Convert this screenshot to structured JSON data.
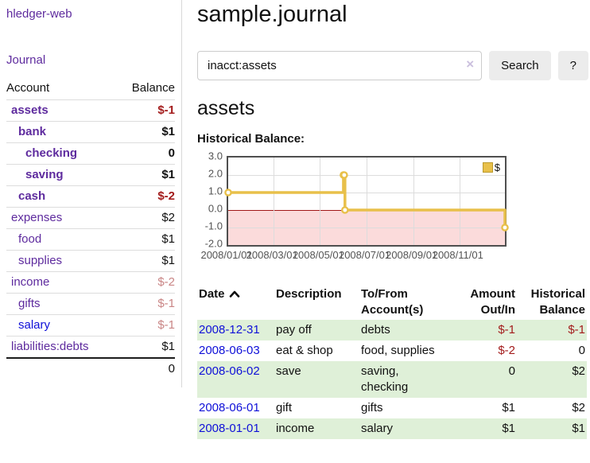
{
  "colors": {
    "link_purple": "#5e2b9e",
    "link_blue": "#0f10d8",
    "negative_dark": "#a31c1c",
    "negative_light": "#c98585",
    "row_green": "#dff0d8",
    "series_gold": "#e8c04a",
    "chart_border": "#4f4f4f",
    "grid_line": "#dcdcdc",
    "zero_line": "#a11616",
    "negative_region": "#fbdbdb",
    "axis_text": "#545454",
    "button_bg": "#ececec",
    "divider": "#d8d8d8"
  },
  "sidebar": {
    "brand": "hledger-web",
    "nav": {
      "journal": "Journal"
    },
    "accounts": {
      "col_account": "Account",
      "col_balance": "Balance",
      "rows": [
        {
          "name": "assets",
          "depth": 1,
          "bold": true,
          "color": "purple",
          "balance": "$-1",
          "balance_style": "neg-dark"
        },
        {
          "name": "bank",
          "depth": 2,
          "bold": true,
          "color": "purple",
          "balance": "$1",
          "balance_style": "pos"
        },
        {
          "name": "checking",
          "depth": 3,
          "bold": true,
          "color": "purple",
          "balance": "0",
          "balance_style": "pos"
        },
        {
          "name": "saving",
          "depth": 3,
          "bold": true,
          "color": "purple",
          "balance": "$1",
          "balance_style": "pos"
        },
        {
          "name": "cash",
          "depth": 2,
          "bold": true,
          "color": "purple",
          "balance": "$-2",
          "balance_style": "neg-dark"
        },
        {
          "name": "expenses",
          "depth": 1,
          "bold": false,
          "color": "purple",
          "balance": "$2",
          "balance_style": "pos"
        },
        {
          "name": "food",
          "depth": 2,
          "bold": false,
          "color": "purple",
          "balance": "$1",
          "balance_style": "pos"
        },
        {
          "name": "supplies",
          "depth": 2,
          "bold": false,
          "color": "purple",
          "balance": "$1",
          "balance_style": "pos"
        },
        {
          "name": "income",
          "depth": 1,
          "bold": false,
          "color": "purple",
          "balance": "$-2",
          "balance_style": "neg-light"
        },
        {
          "name": "gifts",
          "depth": 2,
          "bold": false,
          "color": "purple",
          "balance": "$-1",
          "balance_style": "neg-light"
        },
        {
          "name": "salary",
          "depth": 2,
          "bold": false,
          "color": "blue",
          "balance": "$-1",
          "balance_style": "neg-light"
        },
        {
          "name": "liabilities:debts",
          "depth": 1,
          "bold": false,
          "color": "purple",
          "balance": "$1",
          "balance_style": "pos"
        }
      ],
      "total": "0"
    }
  },
  "header": {
    "title": "sample.journal"
  },
  "search": {
    "value": "inacct:assets",
    "clear_icon": "×",
    "button_label": "Search",
    "help_label": "?"
  },
  "account_page": {
    "heading": "assets",
    "chart_label": "Historical Balance:"
  },
  "chart_data": {
    "type": "line",
    "step": true,
    "title": "Historical Balance",
    "legend": "$",
    "legend_position": "top-right",
    "ylim": [
      -2,
      3
    ],
    "y_ticks": [
      3,
      2,
      1,
      0,
      -1,
      -2
    ],
    "x_range": [
      "2008-01-01",
      "2008-12-31"
    ],
    "x_ticks": [
      {
        "label": "2008/01/01",
        "date": "2008-01-01"
      },
      {
        "label": "2008/03/01",
        "date": "2008-03-01"
      },
      {
        "label": "2008/05/01",
        "date": "2008-05-01"
      },
      {
        "label": "2008/07/01",
        "date": "2008-07-01"
      },
      {
        "label": "2008/09/01",
        "date": "2008-09-01"
      },
      {
        "label": "2008/11/01",
        "date": "2008-11-01"
      }
    ],
    "series": [
      {
        "name": "$",
        "color": "#e8c04a",
        "points": [
          [
            "2008-01-01",
            1
          ],
          [
            "2008-06-01",
            2
          ],
          [
            "2008-06-02",
            2
          ],
          [
            "2008-06-03",
            0
          ],
          [
            "2008-12-31",
            -1
          ]
        ]
      }
    ],
    "negative_region_shaded": true,
    "grid": true
  },
  "register": {
    "columns": [
      "Date",
      "Description",
      "To/From Account(s)",
      "Amount Out/In",
      "Historical Balance"
    ],
    "sort": "date-ascending",
    "rows": [
      {
        "date": "2008-12-31",
        "description": "pay off",
        "accounts": "debts",
        "amount": "$-1",
        "amount_negative": true,
        "balance": "$-1",
        "balance_negative": true
      },
      {
        "date": "2008-06-03",
        "description": "eat & shop",
        "accounts": "food, supplies",
        "amount": "$-2",
        "amount_negative": true,
        "balance": "0",
        "balance_negative": false
      },
      {
        "date": "2008-06-02",
        "description": "save",
        "accounts": "saving, checking",
        "amount": "0",
        "amount_negative": false,
        "balance": "$2",
        "balance_negative": false
      },
      {
        "date": "2008-06-01",
        "description": "gift",
        "accounts": "gifts",
        "amount": "$1",
        "amount_negative": false,
        "balance": "$2",
        "balance_negative": false
      },
      {
        "date": "2008-01-01",
        "description": "income",
        "accounts": "salary",
        "amount": "$1",
        "amount_negative": false,
        "balance": "$1",
        "balance_negative": false
      }
    ]
  }
}
